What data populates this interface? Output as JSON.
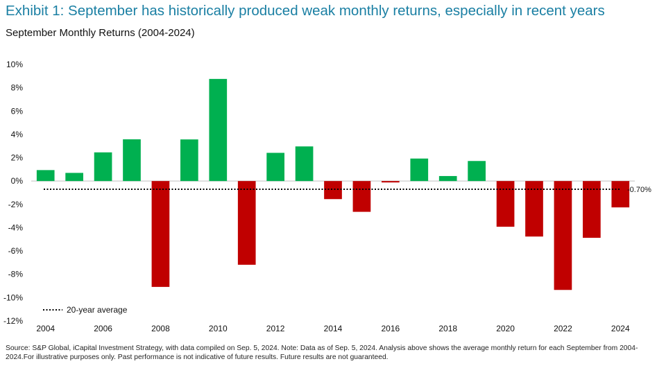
{
  "header": {
    "title": "Exhibit 1: September has historically produced weak monthly returns, especially in recent years",
    "subtitle": "September Monthly Returns (2004-2024)"
  },
  "chart_data": {
    "type": "bar",
    "categories": [
      "2004",
      "2005",
      "2006",
      "2007",
      "2008",
      "2009",
      "2010",
      "2011",
      "2012",
      "2013",
      "2014",
      "2015",
      "2016",
      "2017",
      "2018",
      "2019",
      "2020",
      "2021",
      "2022",
      "2023",
      "2024"
    ],
    "series": [
      {
        "values": [
          0.94,
          0.7,
          2.46,
          3.58,
          -9.08,
          3.57,
          8.76,
          -7.18,
          2.42,
          2.97,
          -1.55,
          -2.64,
          -0.12,
          1.93,
          0.43,
          1.72,
          -3.92,
          -4.76,
          -9.34,
          -4.87,
          -2.26
        ]
      }
    ],
    "x_tick_labels": [
      "2004",
      "2006",
      "2008",
      "2010",
      "2012",
      "2014",
      "2016",
      "2018",
      "2020",
      "2022",
      "2024"
    ],
    "y_tick_labels": [
      "10%",
      "8%",
      "6%",
      "4%",
      "2%",
      "0%",
      "-2%",
      "-4%",
      "-6%",
      "-8%",
      "-10%",
      "-12%"
    ],
    "ylim": [
      -12,
      10
    ],
    "average": {
      "value": -0.7,
      "label": "-0.70%",
      "legend": "20-year average"
    },
    "colors": {
      "positive": "#00b050",
      "negative": "#c00000",
      "title": "#1a7fa3"
    },
    "legend_position": "bottom-left",
    "grid": false
  },
  "footer": {
    "source": "Source: S&P Global, iCapital Investment Strategy, with data compiled on Sep. 5, 2024. Note: Data as of Sep. 5, 2024. Analysis above shows the average monthly return for each September from 2004-2024.For illustrative purposes only. Past performance is not indicative of future results. Future results are not guaranteed."
  }
}
